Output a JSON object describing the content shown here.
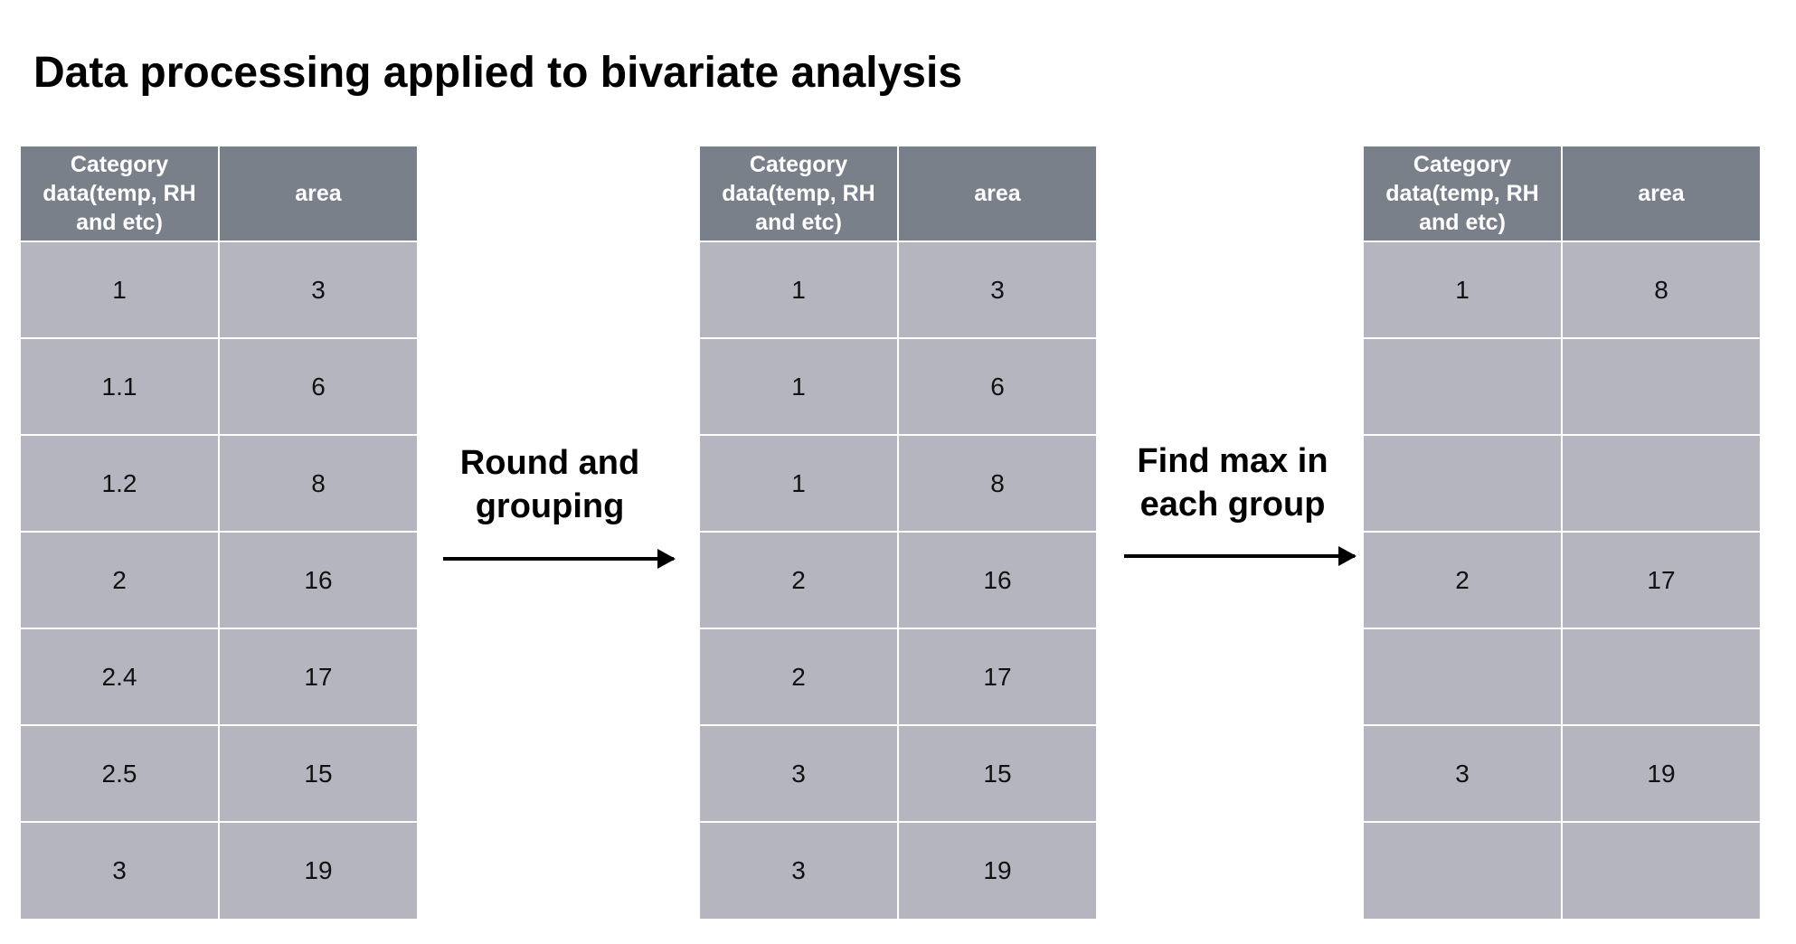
{
  "title": "Data processing applied to bivariate analysis",
  "tables": [
    {
      "headers": [
        "Category data(temp, RH and etc)",
        "area"
      ],
      "rows": [
        [
          "1",
          "3"
        ],
        [
          "1.1",
          "6"
        ],
        [
          "1.2",
          "8"
        ],
        [
          "2",
          "16"
        ],
        [
          "2.4",
          "17"
        ],
        [
          "2.5",
          "15"
        ],
        [
          "3",
          "19"
        ]
      ]
    },
    {
      "headers": [
        "Category data(temp, RH and etc)",
        "area"
      ],
      "rows": [
        [
          "1",
          "3"
        ],
        [
          "1",
          "6"
        ],
        [
          "1",
          "8"
        ],
        [
          "2",
          "16"
        ],
        [
          "2",
          "17"
        ],
        [
          "3",
          "15"
        ],
        [
          "3",
          "19"
        ]
      ]
    },
    {
      "headers": [
        "Category data(temp, RH and etc)",
        "area"
      ],
      "rows": [
        [
          "1",
          "8"
        ],
        [
          "",
          ""
        ],
        [
          "",
          ""
        ],
        [
          "2",
          "17"
        ],
        [
          "",
          ""
        ],
        [
          "3",
          "19"
        ],
        [
          "",
          ""
        ]
      ]
    }
  ],
  "steps": [
    {
      "label_line1": "Round and",
      "label_line2": "grouping"
    },
    {
      "label_line1": "Find max in",
      "label_line2": "each group"
    }
  ]
}
